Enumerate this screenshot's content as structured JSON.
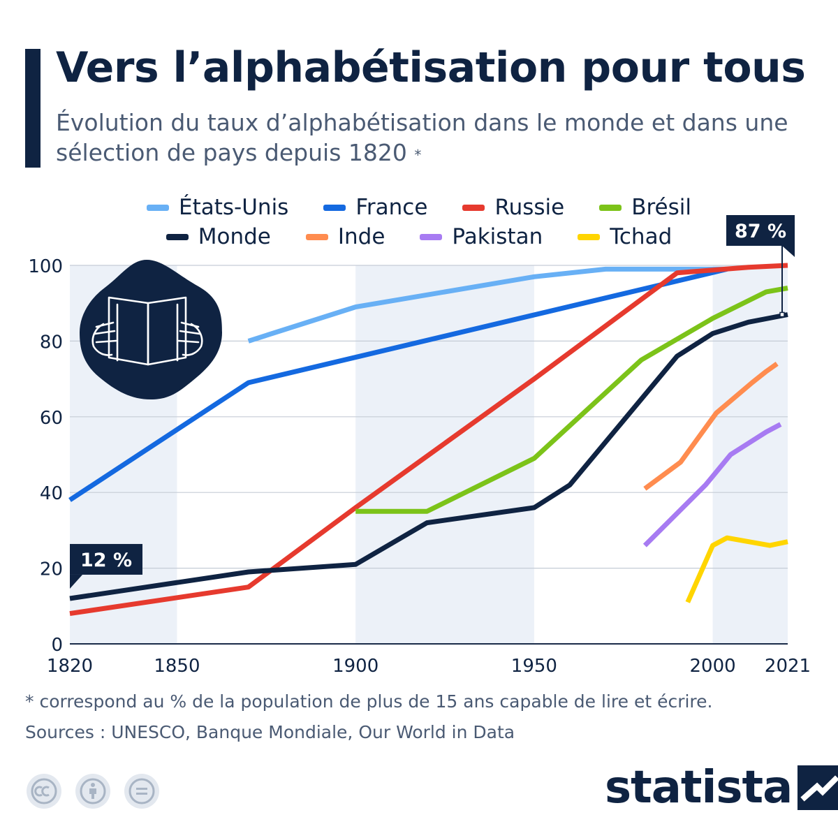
{
  "header": {
    "title": "Vers l’alphabétisation pour tous",
    "subtitle": "Évolution du taux d’alphabétisation dans le monde et dans une sélection de pays depuis 1820",
    "subtitle_mark": "*"
  },
  "colors": {
    "navy": "#0f2342",
    "text_gray": "#4a5a73",
    "band": "#ecf1f8"
  },
  "chart_data": {
    "type": "line",
    "title": "Vers l’alphabétisation pour tous",
    "subtitle": "Évolution du taux d’alphabétisation dans le monde et dans une sélection de pays depuis 1820",
    "xlabel": "",
    "ylabel": "",
    "xlim": [
      1820,
      2021
    ],
    "ylim": [
      0,
      100
    ],
    "x_ticks": [
      "1820",
      "1850",
      "1900",
      "1950",
      "2000",
      "2021"
    ],
    "y_ticks": [
      "0",
      "20",
      "40",
      "60",
      "80",
      "100"
    ],
    "grid": true,
    "legend_position": "top",
    "series": [
      {
        "name": "États-Unis",
        "color": "#68b0f5",
        "points": [
          [
            1870,
            80
          ],
          [
            1900,
            89
          ],
          [
            1950,
            97
          ],
          [
            1970,
            99
          ],
          [
            2004,
            99
          ]
        ]
      },
      {
        "name": "France",
        "color": "#1469e0",
        "points": [
          [
            1820,
            38
          ],
          [
            1870,
            69
          ],
          [
            2004,
            99
          ]
        ]
      },
      {
        "name": "Russie",
        "color": "#e63a2e",
        "points": [
          [
            1820,
            8
          ],
          [
            1870,
            15
          ],
          [
            1900,
            36
          ],
          [
            1950,
            70
          ],
          [
            1990,
            98
          ],
          [
            2010,
            99.5
          ],
          [
            2021,
            100
          ]
        ]
      },
      {
        "name": "Brésil",
        "color": "#7cc319",
        "points": [
          [
            1900,
            35
          ],
          [
            1920,
            35
          ],
          [
            1950,
            49
          ],
          [
            1980,
            75
          ],
          [
            2000,
            86
          ],
          [
            2015,
            93
          ],
          [
            2021,
            94
          ]
        ]
      },
      {
        "name": "Monde",
        "color": "#0f2342",
        "points": [
          [
            1820,
            12
          ],
          [
            1870,
            19
          ],
          [
            1900,
            21
          ],
          [
            1920,
            32
          ],
          [
            1950,
            36
          ],
          [
            1960,
            42
          ],
          [
            1990,
            76
          ],
          [
            2000,
            82
          ],
          [
            2010,
            85
          ],
          [
            2021,
            87
          ]
        ]
      },
      {
        "name": "Inde",
        "color": "#ff8c4f",
        "points": [
          [
            1981,
            41
          ],
          [
            1991,
            48
          ],
          [
            2001,
            61
          ],
          [
            2011,
            69
          ],
          [
            2015,
            72
          ],
          [
            2018,
            74
          ]
        ]
      },
      {
        "name": "Pakistan",
        "color": "#a77bf2",
        "points": [
          [
            1981,
            26
          ],
          [
            1998,
            42
          ],
          [
            2005,
            50
          ],
          [
            2015,
            56
          ],
          [
            2019,
            58
          ]
        ]
      },
      {
        "name": "Tchad",
        "color": "#ffd500",
        "points": [
          [
            1993,
            11
          ],
          [
            2000,
            26
          ],
          [
            2004,
            28
          ],
          [
            2016,
            26
          ],
          [
            2021,
            27
          ]
        ]
      }
    ],
    "annotations": [
      {
        "text": "12 %",
        "x": 1820,
        "y": 12,
        "series": "Monde"
      },
      {
        "text": "87 %",
        "x": 2021,
        "y": 87,
        "series": "Monde"
      }
    ]
  },
  "footer": {
    "footnote": "* correspond au % de la population de plus de 15 ans capable de lire et écrire.",
    "sources": "Sources : UNESCO, Banque Mondiale, Our World in Data",
    "brand": "statista",
    "license_icons": [
      "creative-commons-icon",
      "attribution-icon",
      "no-derivatives-icon"
    ]
  }
}
